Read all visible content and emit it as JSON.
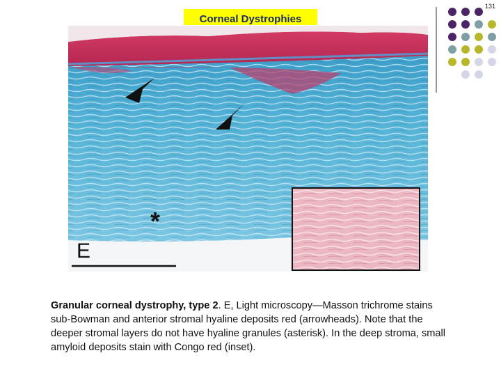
{
  "page_number": "131",
  "title": "Corneal Dystrophies",
  "figure": {
    "panel_label": "E",
    "asterisk": "*"
  },
  "caption": {
    "bold": "Granular corneal dystrophy, type 2",
    "text": ". E, Light microscopy—Masson trichrome stains sub-Bowman and anterior stromal hyaline deposits red (arrowheads). Note that the deeper stromal layers do not have hyaline granules (asterisk). In the deep stroma, small amyloid deposits stain with Congo red (inset)."
  }
}
